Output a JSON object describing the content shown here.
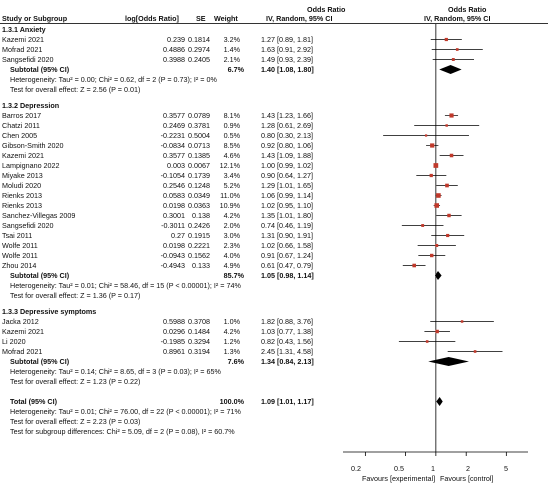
{
  "header": {
    "study": "Study or Subgroup",
    "log_or": "log[Odds Ratio]",
    "se": "SE",
    "weight": "Weight",
    "or_title": "Odds Ratio",
    "or_method": "IV, Random, 95% CI",
    "plot_title": "Odds Ratio",
    "plot_method": "IV, Random, 95% CI"
  },
  "groups": [
    {
      "title": "1.3.1 Anxiety",
      "studies": [
        {
          "name": "Kazemi 2021",
          "logor": "0.239",
          "se": "0.1814",
          "weight": "3.2%",
          "ci": "1.27 [0.89, 1.81]",
          "or": 1.27,
          "lo": 0.89,
          "hi": 1.81
        },
        {
          "name": "Mofrad 2021",
          "logor": "0.4886",
          "se": "0.2974",
          "weight": "1.4%",
          "ci": "1.63 [0.91, 2.92]",
          "or": 1.63,
          "lo": 0.91,
          "hi": 2.92
        },
        {
          "name": "Sangsefidi 2020",
          "logor": "0.3988",
          "se": "0.2405",
          "weight": "2.1%",
          "ci": "1.49 [0.93, 2.39]",
          "or": 1.49,
          "lo": 0.93,
          "hi": 2.39
        }
      ],
      "subtotal": {
        "label": "Subtotal (95% CI)",
        "weight": "6.7%",
        "ci": "1.40 [1.08, 1.80]",
        "or": 1.4,
        "lo": 1.08,
        "hi": 1.8
      },
      "heterogeneity": "Heterogeneity: Tau² = 0.00; Chi² = 0.62, df = 2 (P = 0.73); I² = 0%",
      "overall": "Test for overall effect: Z = 2.56 (P = 0.01)"
    },
    {
      "title": "1.3.2 Depression",
      "studies": [
        {
          "name": "Barros 2017",
          "logor": "0.3577",
          "se": "0.0789",
          "weight": "8.1%",
          "ci": "1.43 [1.23, 1.66]",
          "or": 1.43,
          "lo": 1.23,
          "hi": 1.66
        },
        {
          "name": "Chatzi 2011",
          "logor": "0.2469",
          "se": "0.3781",
          "weight": "0.9%",
          "ci": "1.28 [0.61, 2.69]",
          "or": 1.28,
          "lo": 0.61,
          "hi": 2.69
        },
        {
          "name": "Chen 2005",
          "logor": "-0.2231",
          "se": "0.5004",
          "weight": "0.5%",
          "ci": "0.80 [0.30, 2.13]",
          "or": 0.8,
          "lo": 0.3,
          "hi": 2.13
        },
        {
          "name": "Gibson-Smith 2020",
          "logor": "-0.0834",
          "se": "0.0713",
          "weight": "8.5%",
          "ci": "0.92 [0.80, 1.06]",
          "or": 0.92,
          "lo": 0.8,
          "hi": 1.06
        },
        {
          "name": "Kazemi 2021",
          "logor": "0.3577",
          "se": "0.1385",
          "weight": "4.6%",
          "ci": "1.43 [1.09, 1.88]",
          "or": 1.43,
          "lo": 1.09,
          "hi": 1.88
        },
        {
          "name": "Lampignano 2022",
          "logor": "0.003",
          "se": "0.0067",
          "weight": "12.1%",
          "ci": "1.00 [0.99, 1.02]",
          "or": 1.0,
          "lo": 0.99,
          "hi": 1.02
        },
        {
          "name": "Miyake 2013",
          "logor": "-0.1054",
          "se": "0.1739",
          "weight": "3.4%",
          "ci": "0.90 [0.64, 1.27]",
          "or": 0.9,
          "lo": 0.64,
          "hi": 1.27
        },
        {
          "name": "Moludi 2020",
          "logor": "0.2546",
          "se": "0.1248",
          "weight": "5.2%",
          "ci": "1.29 [1.01, 1.65]",
          "or": 1.29,
          "lo": 1.01,
          "hi": 1.65
        },
        {
          "name": "Rienks 2013",
          "logor": "0.0583",
          "se": "0.0349",
          "weight": "11.0%",
          "ci": "1.06 [0.99, 1.14]",
          "or": 1.06,
          "lo": 0.99,
          "hi": 1.14
        },
        {
          "name": "Rienks 2013",
          "logor": "0.0198",
          "se": "0.0363",
          "weight": "10.9%",
          "ci": "1.02 [0.95, 1.10]",
          "or": 1.02,
          "lo": 0.95,
          "hi": 1.1
        },
        {
          "name": "Sanchez-Villegas 2009",
          "logor": "0.3001",
          "se": "0.138",
          "weight": "4.2%",
          "ci": "1.35 [1.01, 1.80]",
          "or": 1.35,
          "lo": 1.01,
          "hi": 1.8
        },
        {
          "name": "Sangsefidi 2020",
          "logor": "-0.3011",
          "se": "0.2426",
          "weight": "2.0%",
          "ci": "0.74 [0.46, 1.19]",
          "or": 0.74,
          "lo": 0.46,
          "hi": 1.19
        },
        {
          "name": "Tsai 2011",
          "logor": "0.27",
          "se": "0.1915",
          "weight": "3.0%",
          "ci": "1.31 [0.90, 1.91]",
          "or": 1.31,
          "lo": 0.9,
          "hi": 1.91
        },
        {
          "name": "Wolfe 2011",
          "logor": "0.0198",
          "se": "0.2221",
          "weight": "2.3%",
          "ci": "1.02 [0.66, 1.58]",
          "or": 1.02,
          "lo": 0.66,
          "hi": 1.58
        },
        {
          "name": "Wolfe 2011",
          "logor": "-0.0943",
          "se": "0.1562",
          "weight": "4.0%",
          "ci": "0.91 [0.67, 1.24]",
          "or": 0.91,
          "lo": 0.67,
          "hi": 1.24
        },
        {
          "name": "Zhou 2014",
          "logor": "-0.4943",
          "se": "0.133",
          "weight": "4.9%",
          "ci": "0.61 [0.47, 0.79]",
          "or": 0.61,
          "lo": 0.47,
          "hi": 0.79
        }
      ],
      "subtotal": {
        "label": "Subtotal (95% CI)",
        "weight": "85.7%",
        "ci": "1.05 [0.98, 1.14]",
        "or": 1.05,
        "lo": 0.98,
        "hi": 1.14
      },
      "heterogeneity": "Heterogeneity: Tau² = 0.01; Chi² = 58.46, df = 15 (P < 0.00001); I² = 74%",
      "overall": "Test for overall effect: Z = 1.36 (P = 0.17)"
    },
    {
      "title": "1.3.3 Depressive symptoms",
      "studies": [
        {
          "name": "Jacka 2012",
          "logor": "0.5988",
          "se": "0.3708",
          "weight": "1.0%",
          "ci": "1.82 [0.88, 3.76]",
          "or": 1.82,
          "lo": 0.88,
          "hi": 3.76
        },
        {
          "name": "Kazemi 2021",
          "logor": "0.0296",
          "se": "0.1484",
          "weight": "4.2%",
          "ci": "1.03 [0.77, 1.38]",
          "or": 1.03,
          "lo": 0.77,
          "hi": 1.38
        },
        {
          "name": "Li 2020",
          "logor": "-0.1985",
          "se": "0.3294",
          "weight": "1.2%",
          "ci": "0.82 [0.43, 1.56]",
          "or": 0.82,
          "lo": 0.43,
          "hi": 1.56
        },
        {
          "name": "Mofrad 2021",
          "logor": "0.8961",
          "se": "0.3194",
          "weight": "1.3%",
          "ci": "2.45 [1.31, 4.58]",
          "or": 2.45,
          "lo": 1.31,
          "hi": 4.58
        }
      ],
      "subtotal": {
        "label": "Subtotal (95% CI)",
        "weight": "7.6%",
        "ci": "1.34 [0.84, 2.13]",
        "or": 1.34,
        "lo": 0.84,
        "hi": 2.13
      },
      "heterogeneity": "Heterogeneity: Tau² = 0.14; Chi² = 8.65, df = 3 (P = 0.03); I² = 65%",
      "overall": "Test for overall effect: Z = 1.23 (P = 0.22)"
    }
  ],
  "total": {
    "label": "Total (95% CI)",
    "weight": "100.0%",
    "ci": "1.09 [1.01, 1.17]",
    "or": 1.09,
    "lo": 1.01,
    "hi": 1.17,
    "heterogeneity": "Heterogeneity: Tau² = 0.01; Chi² = 76.00, df = 22 (P < 0.00001); I² = 71%",
    "overall": "Test for overall effect: Z = 2.23 (P = 0.03)",
    "subgroup": "Test for subgroup differences: Chi² = 5.09, df = 2 (P = 0.08), I² = 60.7%"
  },
  "axis": {
    "ticks": [
      "0.2",
      "0.5",
      "1",
      "2",
      "5"
    ],
    "left_label": "Favours [experimental]",
    "right_label": "Favours [control]"
  },
  "chart_data": {
    "type": "forest",
    "scale": "log",
    "xlim": [
      0.12,
      8.2
    ],
    "null_line": 1,
    "colors": {
      "box": "#c0392b",
      "line": "#000000",
      "diamond": "#000000"
    }
  }
}
